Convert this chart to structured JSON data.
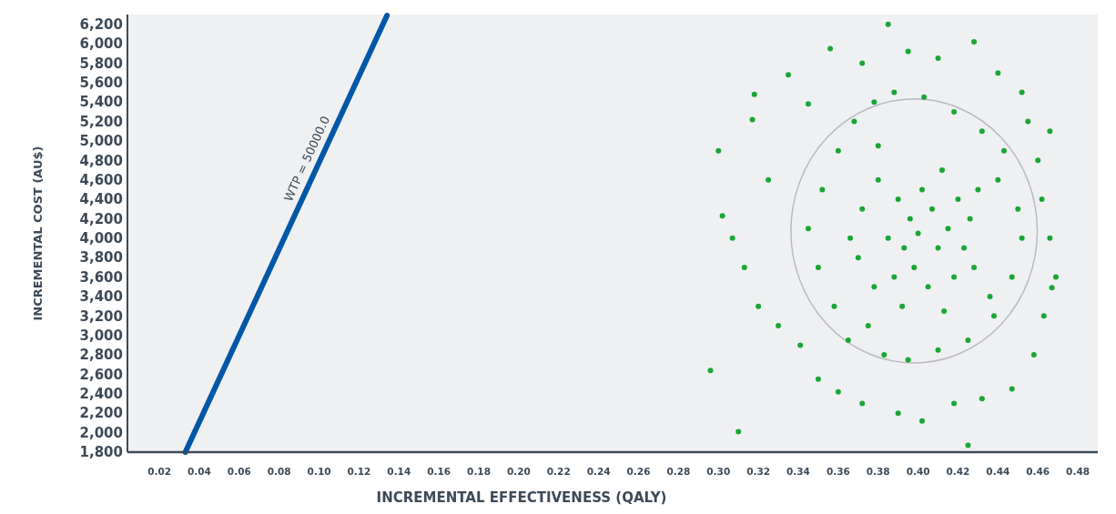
{
  "chart_data": {
    "type": "scatter",
    "xlabel": "INCREMENTAL EFFECTIVENESS (QALY)",
    "ylabel": "INCREMENTAL COST (AU$)",
    "xlim": [
      0.004,
      0.49
    ],
    "ylim": [
      1800,
      6300
    ],
    "xticks": [
      {
        "value": 0.02,
        "label": "0.02"
      },
      {
        "value": 0.04,
        "label": "0.04"
      },
      {
        "value": 0.06,
        "label": "0.06"
      },
      {
        "value": 0.08,
        "label": "0.08"
      },
      {
        "value": 0.1,
        "label": "0.10"
      },
      {
        "value": 0.12,
        "label": "0.12"
      },
      {
        "value": 0.14,
        "label": "0.14"
      },
      {
        "value": 0.16,
        "label": "0.16"
      },
      {
        "value": 0.18,
        "label": "0.18"
      },
      {
        "value": 0.2,
        "label": "0.20"
      },
      {
        "value": 0.22,
        "label": "0.22"
      },
      {
        "value": 0.24,
        "label": "0.24"
      },
      {
        "value": 0.26,
        "label": "0.26"
      },
      {
        "value": 0.28,
        "label": "0.28"
      },
      {
        "value": 0.3,
        "label": "0.30"
      },
      {
        "value": 0.32,
        "label": "0.32"
      },
      {
        "value": 0.34,
        "label": "0.34"
      },
      {
        "value": 0.36,
        "label": "0.36"
      },
      {
        "value": 0.38,
        "label": "0.38"
      },
      {
        "value": 0.4,
        "label": "0.40"
      },
      {
        "value": 0.42,
        "label": "0.42"
      },
      {
        "value": 0.44,
        "label": "0.44"
      },
      {
        "value": 0.46,
        "label": "0.46"
      },
      {
        "value": 0.48,
        "label": "0.48"
      }
    ],
    "yticks": [
      {
        "value": 1800,
        "label": "1,800"
      },
      {
        "value": 2000,
        "label": "2,000"
      },
      {
        "value": 2200,
        "label": "2,200"
      },
      {
        "value": 2400,
        "label": "2,400"
      },
      {
        "value": 2600,
        "label": "2,600"
      },
      {
        "value": 2800,
        "label": "2,800"
      },
      {
        "value": 3000,
        "label": "3,000"
      },
      {
        "value": 3200,
        "label": "3,200"
      },
      {
        "value": 3400,
        "label": "3,400"
      },
      {
        "value": 3600,
        "label": "3,600"
      },
      {
        "value": 3800,
        "label": "3,800"
      },
      {
        "value": 4000,
        "label": "4,000"
      },
      {
        "value": 4200,
        "label": "4,200"
      },
      {
        "value": 4400,
        "label": "4,400"
      },
      {
        "value": 4600,
        "label": "4,600"
      },
      {
        "value": 4800,
        "label": "4,800"
      },
      {
        "value": 5000,
        "label": "5,000"
      },
      {
        "value": 5200,
        "label": "5,200"
      },
      {
        "value": 5400,
        "label": "5,400"
      },
      {
        "value": 5600,
        "label": "5,600"
      },
      {
        "value": 5800,
        "label": "5,800"
      },
      {
        "value": 6000,
        "label": "6,000"
      },
      {
        "value": 6200,
        "label": "6,200"
      }
    ],
    "marker": "circle",
    "annotations": [
      "WTP = 50000.0"
    ],
    "series": [
      {
        "color": "#1aa637",
        "x": [
          0.296,
          0.31,
          0.425,
          0.385,
          0.428,
          0.3,
          0.302,
          0.467,
          0.466,
          0.318,
          0.335,
          0.356,
          0.372,
          0.395,
          0.41,
          0.44,
          0.452,
          0.307,
          0.313,
          0.32,
          0.33,
          0.341,
          0.35,
          0.36,
          0.372,
          0.39,
          0.402,
          0.418,
          0.432,
          0.447,
          0.458,
          0.463,
          0.469,
          0.466,
          0.462,
          0.46,
          0.455,
          0.325,
          0.317,
          0.345,
          0.345,
          0.35,
          0.352,
          0.358,
          0.36,
          0.365,
          0.368,
          0.375,
          0.378,
          0.383,
          0.388,
          0.395,
          0.403,
          0.41,
          0.418,
          0.425,
          0.432,
          0.438,
          0.443,
          0.447,
          0.45,
          0.452,
          0.44,
          0.436,
          0.37,
          0.372,
          0.378,
          0.38,
          0.385,
          0.388,
          0.39,
          0.393,
          0.396,
          0.398,
          0.4,
          0.402,
          0.405,
          0.407,
          0.41,
          0.412,
          0.415,
          0.418,
          0.42,
          0.423,
          0.426,
          0.428,
          0.38,
          0.392,
          0.413,
          0.366,
          0.43
        ],
        "values": [
          2640,
          2010,
          1870,
          6200,
          6020,
          4900,
          4230,
          3490,
          5100,
          5480,
          5680,
          5950,
          5800,
          5920,
          5850,
          5700,
          5500,
          4000,
          3700,
          3300,
          3100,
          2900,
          2550,
          2420,
          2300,
          2200,
          2120,
          2300,
          2350,
          2450,
          2800,
          3200,
          3600,
          4000,
          4400,
          4800,
          5200,
          4600,
          5220,
          5380,
          4100,
          3700,
          4500,
          3300,
          4900,
          2950,
          5200,
          3100,
          5400,
          2800,
          5500,
          2750,
          5450,
          2850,
          5300,
          2950,
          5100,
          3200,
          4900,
          3600,
          4300,
          4000,
          4600,
          3400,
          3800,
          4300,
          3500,
          4600,
          4000,
          3600,
          4400,
          3900,
          4200,
          3700,
          4050,
          4500,
          3500,
          4300,
          3900,
          4700,
          4100,
          3600,
          4400,
          3900,
          4200,
          3700,
          4950,
          3300,
          3250,
          4000,
          4500
        ]
      },
      {
        "type": "line",
        "color": "#0057a8",
        "marker": "none",
        "x": [
          0.033,
          0.134
        ],
        "values": [
          1800,
          6290
        ]
      }
    ]
  }
}
